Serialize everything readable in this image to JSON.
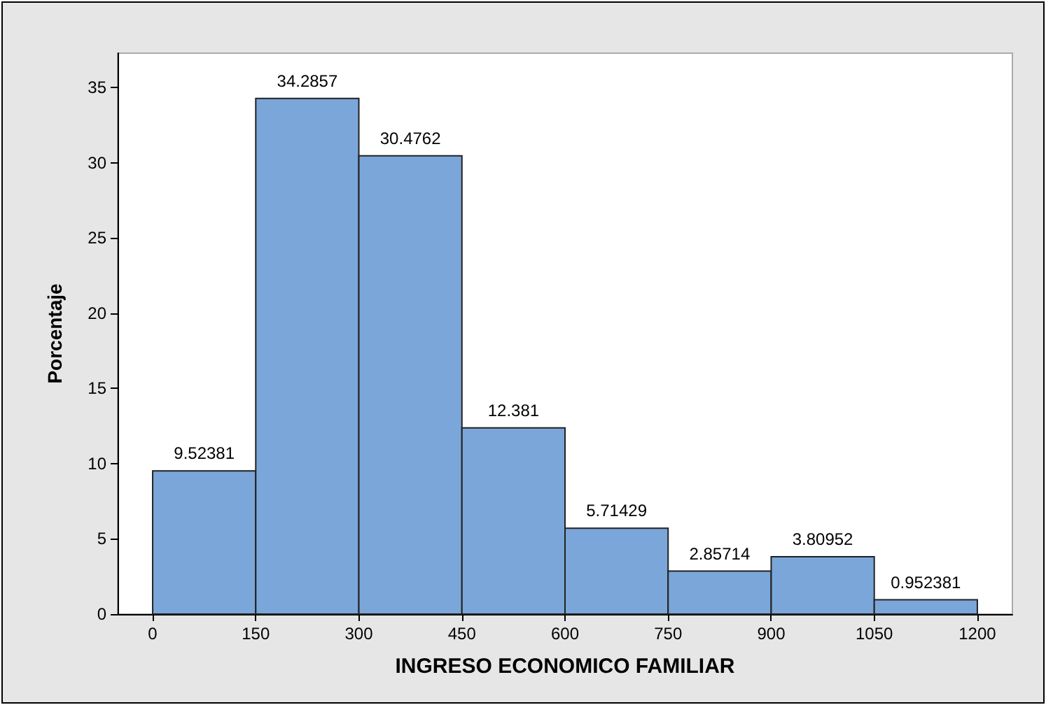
{
  "chart_data": {
    "type": "histogram",
    "xlabel": "INGRESO ECONOMICO FAMILIAR",
    "ylabel": "Porcentaje",
    "bins": [
      0,
      150,
      300,
      450,
      600,
      750,
      900,
      1050,
      1200
    ],
    "values": [
      9.52381,
      34.2857,
      30.4762,
      12.381,
      5.71429,
      2.85714,
      3.80952,
      0.952381
    ],
    "color": "#7ba6d9",
    "xlim": [
      -51,
      1251
    ],
    "ylim": [
      0,
      37.3
    ],
    "xticks": [
      0,
      150,
      300,
      450,
      600,
      750,
      900,
      1050,
      1200
    ],
    "yticks": [
      0,
      5,
      10,
      15,
      20,
      25,
      30,
      35
    ],
    "data_labels": true,
    "grid": false
  }
}
